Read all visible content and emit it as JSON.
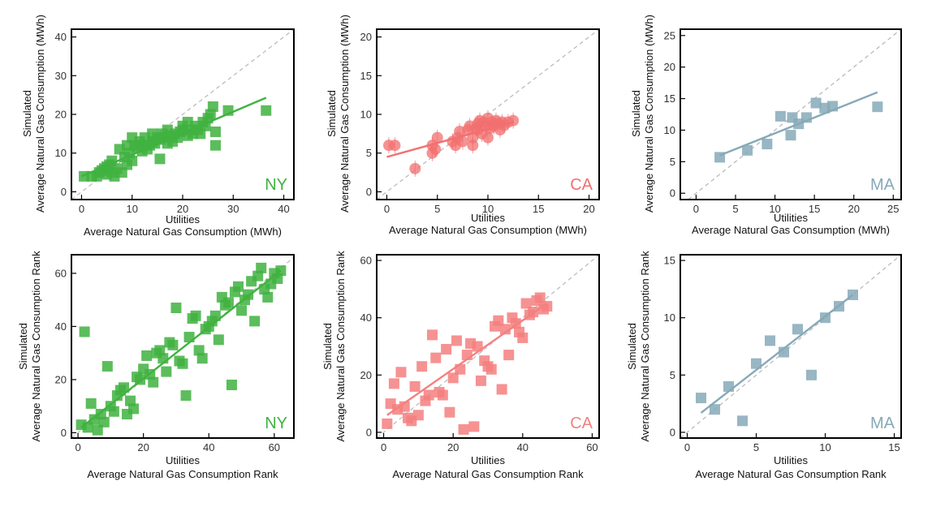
{
  "chart_data": [
    {
      "id": "ny-mwh",
      "type": "scatter",
      "marker": "square",
      "color": "#3fb23f",
      "state_label": "NY",
      "xlabel": [
        "Utilities",
        "Average Natural Gas Consumption (MWh)"
      ],
      "ylabel": [
        "Simulated",
        "Average Natural Gas Consumption (MWh)"
      ],
      "xlim": [
        -2,
        42
      ],
      "ylim": [
        -2,
        42
      ],
      "xticks": [
        0,
        10,
        20,
        30,
        40
      ],
      "yticks": [
        0,
        10,
        20,
        30,
        40
      ],
      "fit_line": [
        [
          0,
          4
        ],
        [
          36.5,
          24.3
        ]
      ],
      "points": [
        [
          0.5,
          4
        ],
        [
          2,
          4
        ],
        [
          3,
          4
        ],
        [
          3.5,
          5
        ],
        [
          4,
          5.5
        ],
        [
          4.5,
          6
        ],
        [
          5,
          6.5
        ],
        [
          5,
          4.5
        ],
        [
          5.5,
          7
        ],
        [
          6,
          5
        ],
        [
          6,
          8
        ],
        [
          6.5,
          4
        ],
        [
          7,
          6
        ],
        [
          7.5,
          11
        ],
        [
          8,
          5
        ],
        [
          8.5,
          9
        ],
        [
          9,
          7
        ],
        [
          9,
          12
        ],
        [
          9.5,
          10
        ],
        [
          10,
          14
        ],
        [
          10,
          8
        ],
        [
          10.5,
          12
        ],
        [
          11,
          11.5
        ],
        [
          11.5,
          13
        ],
        [
          12,
          12
        ],
        [
          12,
          10.5
        ],
        [
          12.5,
          14
        ],
        [
          13,
          11
        ],
        [
          13.5,
          12
        ],
        [
          14,
          13
        ],
        [
          14,
          15
        ],
        [
          14.5,
          12.5
        ],
        [
          15,
          14
        ],
        [
          15.5,
          13.5
        ],
        [
          15.5,
          8.5
        ],
        [
          16,
          15
        ],
        [
          16.5,
          14
        ],
        [
          17,
          12.5
        ],
        [
          17,
          16
        ],
        [
          17.5,
          14.5
        ],
        [
          18,
          13
        ],
        [
          18.5,
          15
        ],
        [
          19,
          14
        ],
        [
          19.5,
          15.5
        ],
        [
          20,
          16
        ],
        [
          20,
          17
        ],
        [
          21,
          14.5
        ],
        [
          21,
          18
        ],
        [
          21.5,
          16
        ],
        [
          22,
          15
        ],
        [
          22.5,
          17
        ],
        [
          23,
          16
        ],
        [
          23.5,
          15
        ],
        [
          24,
          18
        ],
        [
          24.5,
          17
        ],
        [
          25,
          19
        ],
        [
          25.5,
          20
        ],
        [
          26,
          22
        ],
        [
          26.5,
          15.5
        ],
        [
          26.5,
          12
        ],
        [
          29,
          21
        ],
        [
          36.5,
          21
        ]
      ]
    },
    {
      "id": "ca-mwh",
      "type": "scatter",
      "marker": "circle",
      "color": "#f26f6f",
      "state_label": "CA",
      "xlabel": [
        "Utilities",
        "Average Natural Gas Consumption (MWh)"
      ],
      "ylabel": [
        "Simulated",
        "Average Natural Gas Consumption (MWh)"
      ],
      "xlim": [
        -1,
        21
      ],
      "ylim": [
        -1,
        21
      ],
      "xticks": [
        0,
        5,
        10,
        15,
        20
      ],
      "yticks": [
        0,
        5,
        10,
        15,
        20
      ],
      "fit_line": [
        [
          0,
          4.5
        ],
        [
          12.5,
          9
        ]
      ],
      "points": [
        [
          0.2,
          6
        ],
        [
          0.8,
          6
        ],
        [
          2.8,
          3
        ],
        [
          4.5,
          6
        ],
        [
          4.5,
          5
        ],
        [
          4.8,
          5.5
        ],
        [
          5,
          7
        ],
        [
          6.5,
          6.5
        ],
        [
          6.8,
          6
        ],
        [
          7,
          7
        ],
        [
          7.2,
          7.8
        ],
        [
          7.5,
          6.5
        ],
        [
          8,
          8
        ],
        [
          8.2,
          8.5
        ],
        [
          8.5,
          7
        ],
        [
          8.5,
          6
        ],
        [
          8.8,
          8.2
        ],
        [
          9,
          8.8
        ],
        [
          9,
          8
        ],
        [
          9.2,
          9.2
        ],
        [
          9.4,
          7.5
        ],
        [
          9.6,
          9
        ],
        [
          9.8,
          8.5
        ],
        [
          10,
          7
        ],
        [
          10,
          9.5
        ],
        [
          10.2,
          8.2
        ],
        [
          10.4,
          9
        ],
        [
          10.6,
          8.5
        ],
        [
          10.8,
          9.2
        ],
        [
          11,
          8.8
        ],
        [
          11.2,
          8
        ],
        [
          11.4,
          9
        ],
        [
          11.6,
          8.6
        ],
        [
          12,
          9
        ],
        [
          12.5,
          9.2
        ]
      ]
    },
    {
      "id": "ma-mwh",
      "type": "scatter",
      "marker": "square",
      "color": "#86a9b8",
      "state_label": "MA",
      "xlabel": [
        "Utilities",
        "Average Natural Gas Consumption (MWh)"
      ],
      "ylabel": [
        "Simulated",
        "Average Natural Gas Consumption (MWh)"
      ],
      "xlim": [
        -2,
        26
      ],
      "ylim": [
        -1,
        26
      ],
      "xticks": [
        0,
        5,
        10,
        15,
        20,
        25
      ],
      "yticks": [
        0,
        5,
        10,
        15,
        20,
        25
      ],
      "fit_line": [
        [
          3,
          6
        ],
        [
          23,
          16
        ]
      ],
      "points": [
        [
          3,
          5.7
        ],
        [
          6.5,
          6.8
        ],
        [
          9,
          7.8
        ],
        [
          10.7,
          12.2
        ],
        [
          12,
          9.2
        ],
        [
          12.2,
          12
        ],
        [
          13,
          11
        ],
        [
          14,
          12
        ],
        [
          15.2,
          14.3
        ],
        [
          16.3,
          13.5
        ],
        [
          17.3,
          13.8
        ],
        [
          23,
          13.7
        ]
      ]
    },
    {
      "id": "ny-rank",
      "type": "scatter",
      "marker": "square",
      "color": "#3fb23f",
      "state_label": "NY",
      "xlabel": [
        "Utilities",
        "Average Natural Gas Consumption Rank"
      ],
      "ylabel": [
        "Simulated",
        "Average Natural Gas Consumption Rank"
      ],
      "xlim": [
        -2,
        66
      ],
      "ylim": [
        -2,
        67
      ],
      "xticks": [
        0,
        20,
        40,
        60
      ],
      "yticks": [
        0,
        20,
        40,
        60
      ],
      "fit_line": [
        [
          1,
          2
        ],
        [
          62,
          61
        ]
      ],
      "points": [
        [
          1,
          3
        ],
        [
          2,
          38
        ],
        [
          3,
          2
        ],
        [
          4,
          11
        ],
        [
          5,
          5
        ],
        [
          6,
          1
        ],
        [
          7,
          7
        ],
        [
          8,
          4
        ],
        [
          9,
          25
        ],
        [
          10,
          10
        ],
        [
          11,
          8
        ],
        [
          12,
          14
        ],
        [
          13,
          16
        ],
        [
          14,
          17
        ],
        [
          15,
          7
        ],
        [
          16,
          12
        ],
        [
          17,
          9
        ],
        [
          18,
          21
        ],
        [
          19,
          20
        ],
        [
          20,
          24
        ],
        [
          21,
          29
        ],
        [
          22,
          22
        ],
        [
          23,
          19
        ],
        [
          24,
          30
        ],
        [
          25,
          31
        ],
        [
          26,
          28
        ],
        [
          27,
          23
        ],
        [
          28,
          34
        ],
        [
          29,
          33
        ],
        [
          30,
          47
        ],
        [
          31,
          27
        ],
        [
          32,
          26
        ],
        [
          33,
          14
        ],
        [
          34,
          36
        ],
        [
          35,
          43
        ],
        [
          36,
          44
        ],
        [
          37,
          31
        ],
        [
          38,
          28
        ],
        [
          39,
          39
        ],
        [
          40,
          40
        ],
        [
          41,
          42
        ],
        [
          42,
          44
        ],
        [
          43,
          35
        ],
        [
          44,
          51
        ],
        [
          45,
          48
        ],
        [
          46,
          49
        ],
        [
          47,
          18
        ],
        [
          48,
          53
        ],
        [
          49,
          55
        ],
        [
          50,
          46
        ],
        [
          51,
          50
        ],
        [
          52,
          52
        ],
        [
          53,
          57
        ],
        [
          54,
          42
        ],
        [
          55,
          59
        ],
        [
          56,
          62
        ],
        [
          57,
          54
        ],
        [
          58,
          51
        ],
        [
          59,
          56
        ],
        [
          60,
          60
        ],
        [
          61,
          58
        ],
        [
          62,
          61
        ]
      ]
    },
    {
      "id": "ca-rank",
      "type": "scatter",
      "marker": "square",
      "color": "#f57f7f",
      "state_label": "CA",
      "xlabel": [
        "Utilities",
        "Average Natural Gas Consumption Rank"
      ],
      "ylabel": [
        "Simulated",
        "Average Natural Gas Consumption Rank"
      ],
      "xlim": [
        -2,
        62
      ],
      "ylim": [
        -2,
        62
      ],
      "xticks": [
        0,
        20,
        40,
        60
      ],
      "yticks": [
        0,
        20,
        40,
        60
      ],
      "fit_line": [
        [
          1,
          6
        ],
        [
          47,
          45
        ]
      ],
      "points": [
        [
          1,
          3
        ],
        [
          2,
          10
        ],
        [
          3,
          17
        ],
        [
          4,
          8
        ],
        [
          5,
          21
        ],
        [
          6,
          9
        ],
        [
          7,
          5
        ],
        [
          8,
          4
        ],
        [
          9,
          16
        ],
        [
          10,
          6
        ],
        [
          11,
          23
        ],
        [
          12,
          11
        ],
        [
          13,
          13
        ],
        [
          14,
          34
        ],
        [
          15,
          26
        ],
        [
          16,
          14
        ],
        [
          17,
          13
        ],
        [
          18,
          29
        ],
        [
          19,
          7
        ],
        [
          20,
          19
        ],
        [
          21,
          32
        ],
        [
          22,
          22
        ],
        [
          23,
          1
        ],
        [
          24,
          27
        ],
        [
          25,
          31
        ],
        [
          26,
          2
        ],
        [
          27,
          30
        ],
        [
          28,
          18
        ],
        [
          29,
          25
        ],
        [
          30,
          23
        ],
        [
          31,
          22
        ],
        [
          32,
          37
        ],
        [
          33,
          39
        ],
        [
          34,
          15
        ],
        [
          35,
          36
        ],
        [
          36,
          27
        ],
        [
          37,
          40
        ],
        [
          38,
          38
        ],
        [
          39,
          35
        ],
        [
          40,
          33
        ],
        [
          41,
          45
        ],
        [
          42,
          41
        ],
        [
          43,
          42
        ],
        [
          44,
          46
        ],
        [
          45,
          47
        ],
        [
          46,
          43
        ],
        [
          47,
          44
        ]
      ]
    },
    {
      "id": "ma-rank",
      "type": "scatter",
      "marker": "square",
      "color": "#86a9b8",
      "state_label": "MA",
      "xlabel": [
        "Utilities",
        "Average Natural Gas Consumption Rank"
      ],
      "ylabel": [
        "Simulated",
        "Average Natural Gas Consumption Rank"
      ],
      "xlim": [
        -0.5,
        15.5
      ],
      "ylim": [
        -0.5,
        15.5
      ],
      "xticks": [
        0,
        5,
        10,
        15
      ],
      "yticks": [
        0,
        5,
        10,
        15
      ],
      "fit_line": [
        [
          1,
          1.7
        ],
        [
          12,
          12
        ]
      ],
      "points": [
        [
          1,
          3
        ],
        [
          2,
          2
        ],
        [
          3,
          4
        ],
        [
          4,
          1
        ],
        [
          5,
          6
        ],
        [
          6,
          8
        ],
        [
          7,
          7
        ],
        [
          8,
          9
        ],
        [
          9,
          5
        ],
        [
          10,
          10
        ],
        [
          11,
          11
        ],
        [
          12,
          12
        ]
      ]
    }
  ]
}
